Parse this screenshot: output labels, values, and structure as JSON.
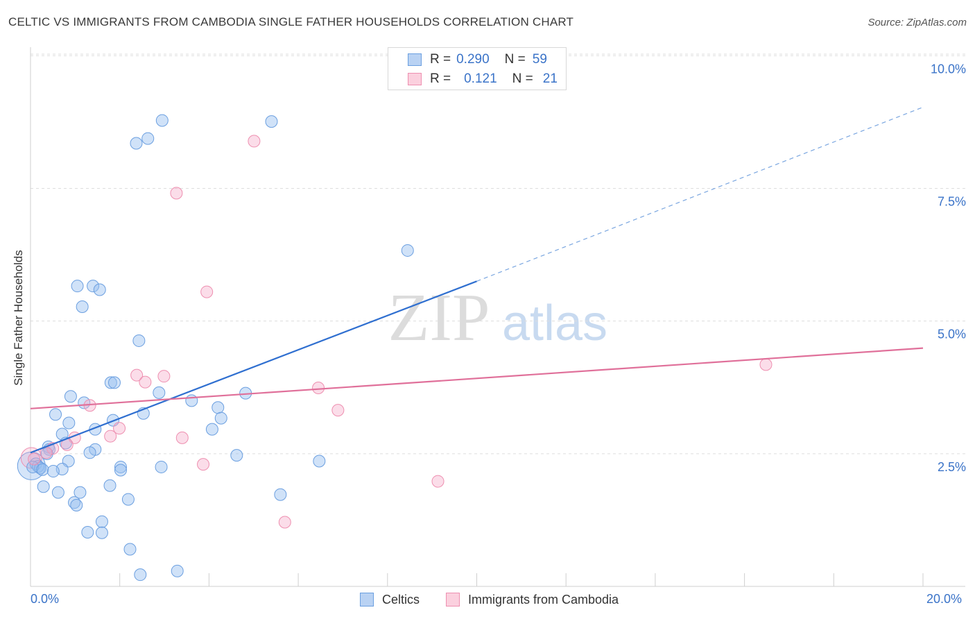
{
  "title": "CELTIC VS IMMIGRANTS FROM CAMBODIA SINGLE FATHER HOUSEHOLDS CORRELATION CHART",
  "source": "Source: ZipAtlas.com",
  "watermark": {
    "zip": "ZIP",
    "atlas": "atlas"
  },
  "colors": {
    "celtic": "#6b9fe0",
    "cambodia": "#ee8fb0",
    "axis_text": "#3a73c8",
    "grid": "#dddddd"
  },
  "legend": {
    "rows": [
      {
        "r_label": "R =",
        "r_value": "0.290",
        "n_label": "N =",
        "n_value": "59"
      },
      {
        "r_label": "R =",
        "r_value": "0.121",
        "n_label": "N =",
        "n_value": "21"
      }
    ]
  },
  "bottom_legend": {
    "celtic": "Celtics",
    "cambodia": "Immigrants from Cambodia"
  },
  "chart_data": {
    "type": "scatter",
    "ylabel": "Single Father Households",
    "xlim": [
      0,
      20
    ],
    "ylim": [
      0,
      10.2
    ],
    "x_tick_labels": [
      "0.0%",
      "20.0%"
    ],
    "y_ticks": [
      {
        "value": 2.5,
        "label": "2.5%"
      },
      {
        "value": 5.0,
        "label": "5.0%"
      },
      {
        "value": 7.5,
        "label": "7.5%"
      },
      {
        "value": 10.0,
        "label": "10.0%"
      }
    ],
    "grid": "horizontal dashed",
    "series": [
      {
        "name": "Celtics",
        "points": [
          [
            2.95,
            8.78
          ],
          [
            5.4,
            8.76
          ],
          [
            2.63,
            8.44
          ],
          [
            2.37,
            8.35
          ],
          [
            8.45,
            6.33
          ],
          [
            1.05,
            5.66
          ],
          [
            1.4,
            5.66
          ],
          [
            1.55,
            5.59
          ],
          [
            1.16,
            5.27
          ],
          [
            2.43,
            4.63
          ],
          [
            1.8,
            3.84
          ],
          [
            1.88,
            3.84
          ],
          [
            0.9,
            3.58
          ],
          [
            1.2,
            3.46
          ],
          [
            2.88,
            3.65
          ],
          [
            3.61,
            3.5
          ],
          [
            4.82,
            3.64
          ],
          [
            4.2,
            3.37
          ],
          [
            0.56,
            3.24
          ],
          [
            4.27,
            3.17
          ],
          [
            2.53,
            3.26
          ],
          [
            0.86,
            3.08
          ],
          [
            1.85,
            3.13
          ],
          [
            1.45,
            2.96
          ],
          [
            4.07,
            2.96
          ],
          [
            0.71,
            2.87
          ],
          [
            0.79,
            2.7
          ],
          [
            0.4,
            2.63
          ],
          [
            0.42,
            2.58
          ],
          [
            1.45,
            2.58
          ],
          [
            1.33,
            2.52
          ],
          [
            4.62,
            2.47
          ],
          [
            0.37,
            2.5
          ],
          [
            0.85,
            2.36
          ],
          [
            6.47,
            2.36
          ],
          [
            0.12,
            2.31
          ],
          [
            0.17,
            2.26
          ],
          [
            0.22,
            2.23
          ],
          [
            0.05,
            2.25
          ],
          [
            0.27,
            2.2
          ],
          [
            2.02,
            2.25
          ],
          [
            2.02,
            2.19
          ],
          [
            2.93,
            2.25
          ],
          [
            0.71,
            2.21
          ],
          [
            0.51,
            2.17
          ],
          [
            0.29,
            1.88
          ],
          [
            1.78,
            1.9
          ],
          [
            0.62,
            1.77
          ],
          [
            1.11,
            1.77
          ],
          [
            5.6,
            1.73
          ],
          [
            2.19,
            1.64
          ],
          [
            0.98,
            1.58
          ],
          [
            1.03,
            1.53
          ],
          [
            1.6,
            1.22
          ],
          [
            1.28,
            1.02
          ],
          [
            1.6,
            1.01
          ],
          [
            2.23,
            0.7
          ],
          [
            3.29,
            0.29
          ],
          [
            2.46,
            0.22
          ]
        ]
      },
      {
        "name": "Immigrants from Cambodia",
        "points": [
          [
            5.01,
            8.39
          ],
          [
            3.27,
            7.41
          ],
          [
            3.95,
            5.55
          ],
          [
            2.38,
            3.98
          ],
          [
            2.99,
            3.96
          ],
          [
            2.57,
            3.85
          ],
          [
            6.45,
            3.74
          ],
          [
            1.33,
            3.41
          ],
          [
            6.89,
            3.32
          ],
          [
            1.99,
            2.98
          ],
          [
            0.99,
            2.8
          ],
          [
            1.79,
            2.83
          ],
          [
            3.4,
            2.8
          ],
          [
            0.82,
            2.67
          ],
          [
            0.5,
            2.6
          ],
          [
            0.35,
            2.52
          ],
          [
            0.08,
            2.4
          ],
          [
            3.87,
            2.3
          ],
          [
            9.13,
            1.98
          ],
          [
            5.7,
            1.21
          ],
          [
            16.48,
            4.18
          ]
        ]
      }
    ],
    "trend_lines": [
      {
        "series": "Celtics",
        "solid": [
          [
            0,
            2.52
          ],
          [
            10,
            5.75
          ]
        ],
        "dashed": [
          [
            10,
            5.75
          ],
          [
            20,
            9.03
          ]
        ]
      },
      {
        "series": "Immigrants from Cambodia",
        "solid": [
          [
            0,
            3.35
          ],
          [
            20,
            4.49
          ]
        ]
      }
    ],
    "legend_position": "top-center"
  }
}
